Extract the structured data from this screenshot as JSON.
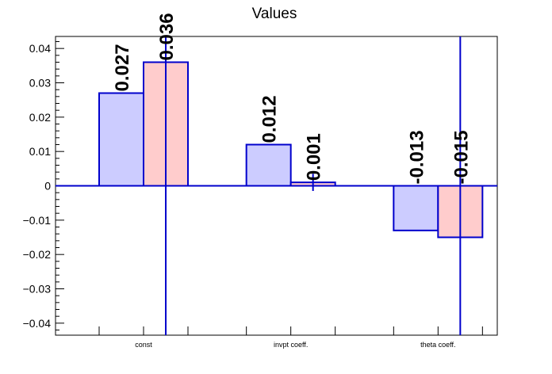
{
  "chart_data": {
    "type": "bar",
    "title": "Values",
    "xlabel": "",
    "ylabel": "",
    "categories": [
      "const",
      "invpt coeff.",
      "theta coeff."
    ],
    "series": [
      {
        "values": [
          0.027,
          0.012,
          -0.013
        ],
        "labels": [
          "0.027",
          "0.012",
          "-0.013"
        ],
        "color": "#ccccff",
        "edge": "#0000cc"
      },
      {
        "values": [
          0.036,
          0.001,
          -0.015
        ],
        "labels": [
          "0.036",
          "0.001",
          "-0.015"
        ],
        "color": "#ffcccc",
        "edge": "#0000cc",
        "errors": [
          0.1,
          0.0025,
          0.1
        ]
      }
    ],
    "ylim": [
      -0.0435,
      0.0435
    ],
    "yticks": [
      -0.04,
      -0.03,
      -0.02,
      -0.01,
      0,
      0.01,
      0.02,
      0.03,
      0.04
    ],
    "ytick_labels": [
      "−0.04",
      "−0.03",
      "−0.02",
      "−0.01",
      "0",
      "0.01",
      "0.02",
      "0.03",
      "0.04"
    ],
    "grid": false,
    "zero_line": true
  }
}
